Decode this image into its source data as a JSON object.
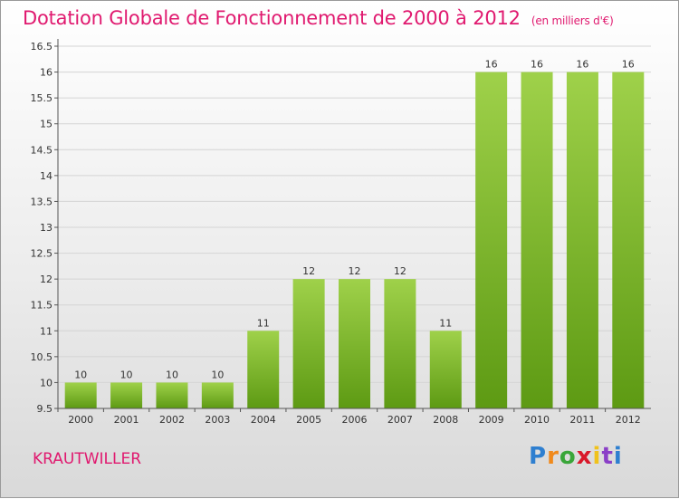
{
  "chart_data": {
    "type": "bar",
    "title": "Dotation Globale de Fonctionnement de 2000 à 2012",
    "subtitle": "(en milliers d'€)",
    "categories": [
      "2000",
      "2001",
      "2002",
      "2003",
      "2004",
      "2005",
      "2006",
      "2007",
      "2008",
      "2009",
      "2010",
      "2011",
      "2012"
    ],
    "values": [
      10,
      10,
      10,
      10,
      11,
      12,
      12,
      12,
      11,
      16,
      16,
      16,
      16
    ],
    "data_labels": [
      "10",
      "10",
      "10",
      "10",
      "11",
      "12",
      "12",
      "12",
      "11",
      "16",
      "16",
      "16",
      "16"
    ],
    "yticks": [
      "9.5",
      "10",
      "10.5",
      "11",
      "11.5",
      "12",
      "12.5",
      "13",
      "13.5",
      "14",
      "14.5",
      "15",
      "15.5",
      "16",
      "16.5"
    ],
    "ylim": [
      9.5,
      16.5
    ],
    "grid": true,
    "bar_color_top": "#9fd14a",
    "bar_color_bottom": "#5d9a13",
    "grid_color": "#d4d4d4"
  },
  "footer": {
    "commune": "KRAUTWILLER",
    "logo": [
      "P",
      "r",
      "o",
      "x",
      "i",
      "t",
      "i"
    ],
    "logo_colors": [
      "#2e7fd0",
      "#f08a1c",
      "#3aa63a",
      "#d9182b",
      "#f0c21c",
      "#8a3fc7",
      "#2e7fd0"
    ]
  }
}
